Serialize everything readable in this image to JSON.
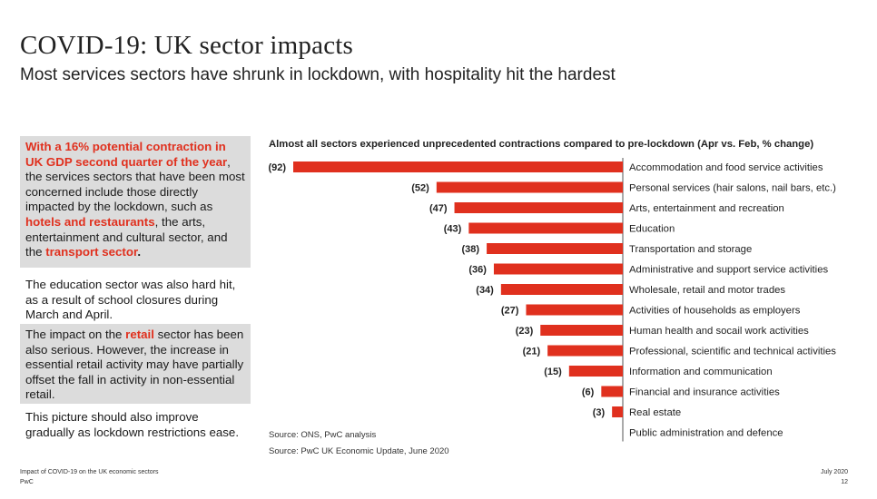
{
  "header": {
    "title": "COVID-19: UK sector impacts",
    "subtitle": "Most services sectors have shrunk in lockdown, with hospitality hit the hardest"
  },
  "sidebar": {
    "p1": {
      "hl1": "With a 16% potential contraction in UK GDP second quarter of the year",
      "t1": ", the services sectors that have been most concerned include those directly impacted by the lockdown, such as ",
      "hl2": "hotels and restaurants",
      "t2": ", the arts, entertainment and cultural sector, and the ",
      "hl3": "transport sector",
      "t3": "."
    },
    "p2": "The education sector was also hard hit, as a result of school closures during March and April.",
    "p3": {
      "t1": "The impact on the ",
      "hl1": "retail",
      "t2": " sector has been also serious. However, the increase in essential retail activity may have partially offset the fall in activity in non-essential retail."
    },
    "p4": "This picture should also improve gradually as lockdown restrictions ease."
  },
  "sources": {
    "s1": "Source: ONS, PwC analysis",
    "s2": "Source: PwC UK Economic Update, June 2020"
  },
  "footer": {
    "left1": "Impact of COVID-19 on the UK economic sectors",
    "left2": "PwC",
    "right1": "July 2020",
    "right2": "12"
  },
  "colors": {
    "bar": "#e0301e",
    "highlight_box": "#dcdcdc"
  },
  "chart_data": {
    "type": "bar",
    "orientation": "horizontal",
    "title": "Almost all sectors experienced unprecedented contractions compared to pre-lockdown (Apr vs. Feb, % change)",
    "categories": [
      "Accommodation and food service activities",
      "Personal services (hair salons, nail bars, etc.)",
      "Arts, entertainment and recreation",
      "Education",
      "Transportation and storage",
      "Administrative and support service activities",
      "Wholesale, retail and motor trades",
      "Activities of households as employers",
      "Human health and socail work activities",
      "Professional, scientific and technical activities",
      "Information and communication",
      "Financial and insurance activities",
      "Real estate",
      "Public administration and defence"
    ],
    "values": [
      -92,
      -52,
      -47,
      -43,
      -38,
      -36,
      -34,
      -27,
      -23,
      -21,
      -15,
      -6,
      -3,
      0
    ],
    "value_labels": [
      "(92)",
      "(52)",
      "(47)",
      "(43)",
      "(38)",
      "(36)",
      "(34)",
      "(27)",
      "(23)",
      "(21)",
      "(15)",
      "(6)",
      "(3)",
      ""
    ],
    "xlim": [
      -92,
      0
    ],
    "grid": false,
    "legend": "none"
  }
}
